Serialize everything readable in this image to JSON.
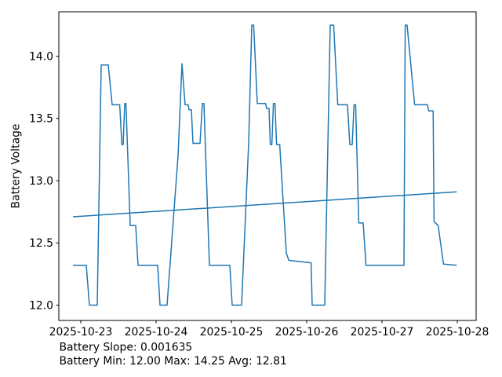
{
  "chart_data": {
    "type": "line",
    "title": "",
    "xlabel": "",
    "ylabel": "Battery Voltage",
    "grid": false,
    "legend": "none",
    "time_origin": "2025-10-23 00:00",
    "x_axis": {
      "tick_labels": [
        "2025-10-23",
        "2025-10-24",
        "2025-10-25",
        "2025-10-26",
        "2025-10-27",
        "2025-10-28"
      ],
      "tick_hours": [
        0,
        24,
        48,
        72,
        96,
        120
      ],
      "range_hours": [
        -7,
        126
      ]
    },
    "y_axis": {
      "tick_labels": [
        "12.0",
        "12.5",
        "13.0",
        "13.5",
        "14.0"
      ],
      "tick_values": [
        12.0,
        12.5,
        13.0,
        13.5,
        14.0
      ],
      "range": [
        11.877,
        14.357
      ]
    },
    "series": [
      {
        "name": "battery_voltage",
        "color": "#1f77b4",
        "width": 1.5,
        "points_hours_volts": [
          [
            -2.5,
            12.32
          ],
          [
            1.75,
            12.32
          ],
          [
            2.75,
            12.0
          ],
          [
            5.25,
            12.0
          ],
          [
            6.5,
            13.93
          ],
          [
            8.75,
            13.93
          ],
          [
            10.0,
            13.61
          ],
          [
            12.4,
            13.61
          ],
          [
            13.1,
            13.29
          ],
          [
            13.5,
            13.29
          ],
          [
            14.0,
            13.62
          ],
          [
            14.4,
            13.62
          ],
          [
            15.75,
            12.64
          ],
          [
            17.5,
            12.64
          ],
          [
            18.25,
            12.32
          ],
          [
            24.5,
            12.32
          ],
          [
            25.25,
            12.0
          ],
          [
            27.5,
            12.0
          ],
          [
            31.0,
            13.2
          ],
          [
            32.25,
            13.94
          ],
          [
            33.25,
            13.61
          ],
          [
            34.25,
            13.61
          ],
          [
            34.5,
            13.57
          ],
          [
            35.25,
            13.57
          ],
          [
            35.75,
            13.3
          ],
          [
            38.0,
            13.3
          ],
          [
            38.75,
            13.62
          ],
          [
            39.25,
            13.62
          ],
          [
            41.0,
            12.32
          ],
          [
            47.5,
            12.32
          ],
          [
            48.25,
            12.0
          ],
          [
            51.25,
            12.0
          ],
          [
            53.5,
            13.3
          ],
          [
            54.5,
            14.25
          ],
          [
            55.1,
            14.25
          ],
          [
            56.25,
            13.62
          ],
          [
            58.9,
            13.62
          ],
          [
            59.25,
            13.58
          ],
          [
            60.0,
            13.58
          ],
          [
            60.4,
            13.29
          ],
          [
            60.9,
            13.29
          ],
          [
            61.4,
            13.62
          ],
          [
            61.9,
            13.62
          ],
          [
            62.4,
            13.29
          ],
          [
            63.4,
            13.29
          ],
          [
            65.5,
            12.42
          ],
          [
            66.3,
            12.36
          ],
          [
            73.4,
            12.34
          ],
          [
            73.75,
            12.0
          ],
          [
            77.75,
            12.0
          ],
          [
            79.5,
            14.25
          ],
          [
            80.6,
            14.25
          ],
          [
            81.9,
            13.61
          ],
          [
            85.0,
            13.61
          ],
          [
            85.75,
            13.29
          ],
          [
            86.5,
            13.29
          ],
          [
            87.1,
            13.61
          ],
          [
            87.6,
            13.61
          ],
          [
            88.6,
            12.66
          ],
          [
            90.0,
            12.66
          ],
          [
            90.9,
            12.32
          ],
          [
            103.0,
            12.32
          ],
          [
            103.4,
            14.25
          ],
          [
            104.0,
            14.25
          ],
          [
            106.4,
            13.61
          ],
          [
            110.5,
            13.61
          ],
          [
            110.9,
            13.56
          ],
          [
            112.3,
            13.56
          ],
          [
            112.6,
            12.67
          ],
          [
            113.9,
            12.64
          ],
          [
            115.6,
            12.33
          ],
          [
            119.8,
            12.32
          ]
        ]
      },
      {
        "name": "battery_trend",
        "color": "#1f77b4",
        "width": 1.5,
        "points_hours_volts": [
          [
            -2.5,
            12.71
          ],
          [
            119.8,
            12.91
          ]
        ]
      }
    ]
  },
  "annotations": {
    "slope_line": "Battery Slope: 0.001635",
    "stats_line": "Battery Min: 12.00 Max: 14.25 Avg: 12.81"
  },
  "colors": {
    "series": "#1f77b4",
    "ylabel": "#1f77b4",
    "axis": "#000000",
    "text": "#000000",
    "background": "#ffffff"
  }
}
